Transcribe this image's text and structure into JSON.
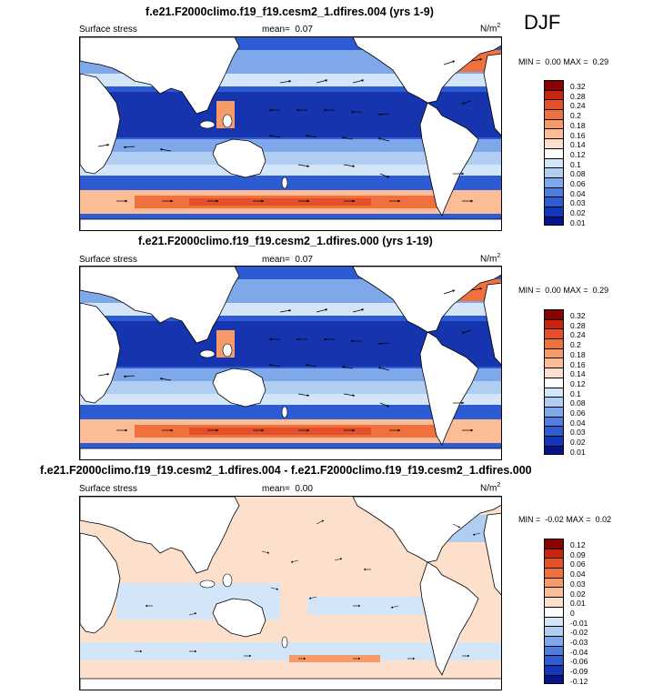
{
  "season": "DJF",
  "panels": [
    {
      "title": "f.e21.F2000climo.f19_f19.cesm2_1.dfires.004 (yrs 1-9)",
      "left_label": "Surface stress",
      "mean_label": "mean=",
      "mean_value": "0.07",
      "units": "N/m",
      "units_sup": "2",
      "min_label": "MIN =",
      "min_value": "0.00",
      "max_label": "MAX =",
      "max_value": "0.29",
      "colorbar": {
        "labels": [
          "0.32",
          "0.28",
          "0.24",
          "0.2",
          "0.18",
          "0.16",
          "0.14",
          "0.12",
          "0.1",
          "0.08",
          "0.06",
          "0.04",
          "0.03",
          "0.02",
          "0.01"
        ],
        "colors": [
          "#8b0000",
          "#c8240e",
          "#e4502a",
          "#f0703e",
          "#f69a6a",
          "#fbbc96",
          "#fde0cb",
          "#ffffff",
          "#d3e5f8",
          "#b0cdf2",
          "#7fa8ea",
          "#4f7de0",
          "#2c5bd4",
          "#1437b8",
          "#04148e"
        ]
      }
    },
    {
      "title": "f.e21.F2000climo.f19_f19.cesm2_1.dfires.000 (yrs 1-19)",
      "left_label": "Surface stress",
      "mean_label": "mean=",
      "mean_value": "0.07",
      "units": "N/m",
      "units_sup": "2",
      "min_label": "MIN =",
      "min_value": "0.00",
      "max_label": "MAX =",
      "max_value": "0.29",
      "colorbar": {
        "labels": [
          "0.32",
          "0.28",
          "0.24",
          "0.2",
          "0.18",
          "0.16",
          "0.14",
          "0.12",
          "0.1",
          "0.08",
          "0.06",
          "0.04",
          "0.03",
          "0.02",
          "0.01"
        ],
        "colors": [
          "#8b0000",
          "#c8240e",
          "#e4502a",
          "#f0703e",
          "#f69a6a",
          "#fbbc96",
          "#fde0cb",
          "#ffffff",
          "#d3e5f8",
          "#b0cdf2",
          "#7fa8ea",
          "#4f7de0",
          "#2c5bd4",
          "#1437b8",
          "#04148e"
        ]
      }
    },
    {
      "title": "f.e21.F2000climo.f19_f19.cesm2_1.dfires.004 - f.e21.F2000climo.f19_f19.cesm2_1.dfires.000",
      "left_label": "Surface stress",
      "mean_label": "mean=",
      "mean_value": "0.00",
      "units": "N/m",
      "units_sup": "2",
      "min_label": "MIN =",
      "min_value": "-0.02",
      "max_label": "MAX =",
      "max_value": "0.02",
      "colorbar": {
        "labels": [
          "0.12",
          "0.09",
          "0.06",
          "0.04",
          "0.03",
          "0.02",
          "0.01",
          "0",
          "-0.01",
          "-0.02",
          "-0.03",
          "-0.04",
          "-0.06",
          "-0.09",
          "-0.12"
        ],
        "colors": [
          "#8b0000",
          "#c8240e",
          "#e4502a",
          "#f0703e",
          "#f69a6a",
          "#fbbc96",
          "#fde0cb",
          "#ffffff",
          "#d3e5f8",
          "#b0cdf2",
          "#7fa8ea",
          "#4f7de0",
          "#2c5bd4",
          "#1437b8",
          "#04148e"
        ]
      }
    }
  ]
}
